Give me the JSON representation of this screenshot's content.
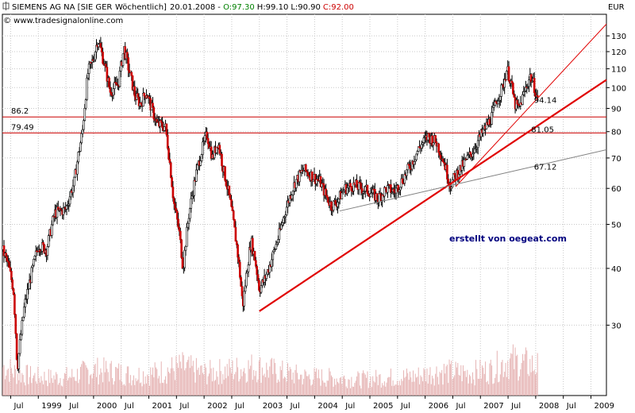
{
  "header": {
    "name": "SIEMENS AG NA [SIE GER",
    "interval": "Wöchentlich]",
    "date": "20.01.2008",
    "o_label": "O:97.30",
    "h_label": "H:99.10",
    "l_label": "L:90.90",
    "c_label": "C:92.00",
    "source": "© www.tradesignalonline.com",
    "currency": "EUR"
  },
  "colors": {
    "up": "#008000",
    "close": "#cc0000",
    "hline": "#cc0000",
    "trend_red": "#e00000",
    "trend_gray": "#808080",
    "watermark": "#00007f"
  },
  "watermark": "erstellt von oegeat.com",
  "chart_data": {
    "type": "candlestick",
    "title": "SIEMENS AG NA [SIE GER Wöchentlich]",
    "ylabel": "EUR",
    "y_scale": "log",
    "ylim": [
      21,
      145
    ],
    "y_ticks": [
      30,
      40,
      50,
      60,
      70,
      80,
      90,
      100,
      110,
      120,
      130
    ],
    "x_range": [
      1998.35,
      2009.28
    ],
    "x_ticks": [
      {
        "label": "Jul",
        "x": 1998.5
      },
      {
        "label": "1999",
        "x": 1999.0
      },
      {
        "label": "Jul",
        "x": 1999.5
      },
      {
        "label": "2000",
        "x": 2000.0
      },
      {
        "label": "Jul",
        "x": 2000.5
      },
      {
        "label": "2001",
        "x": 2001.0
      },
      {
        "label": "Jul",
        "x": 2001.5
      },
      {
        "label": "2002",
        "x": 2002.0
      },
      {
        "label": "Jul",
        "x": 2002.5
      },
      {
        "label": "2003",
        "x": 2003.0
      },
      {
        "label": "Jul",
        "x": 2003.5
      },
      {
        "label": "2004",
        "x": 2004.0
      },
      {
        "label": "Jul",
        "x": 2004.5
      },
      {
        "label": "2005",
        "x": 2005.0
      },
      {
        "label": "Jul",
        "x": 2005.5
      },
      {
        "label": "2006",
        "x": 2006.0
      },
      {
        "label": "Jul",
        "x": 2006.5
      },
      {
        "label": "2007",
        "x": 2007.0
      },
      {
        "label": "Jul",
        "x": 2007.5
      },
      {
        "label": "2008",
        "x": 2008.0
      },
      {
        "label": "Jul",
        "x": 2008.5
      },
      {
        "label": "2009",
        "x": 2009.0
      }
    ],
    "price_path": [
      [
        1998.35,
        44
      ],
      [
        1998.45,
        41
      ],
      [
        1998.55,
        36
      ],
      [
        1998.62,
        24
      ],
      [
        1998.75,
        33
      ],
      [
        1998.9,
        40
      ],
      [
        1999.0,
        45
      ],
      [
        1999.15,
        44
      ],
      [
        1999.3,
        53
      ],
      [
        1999.5,
        54
      ],
      [
        1999.65,
        62
      ],
      [
        1999.8,
        80
      ],
      [
        1999.9,
        108
      ],
      [
        2000.0,
        116
      ],
      [
        2000.08,
        128
      ],
      [
        2000.2,
        112
      ],
      [
        2000.3,
        98
      ],
      [
        2000.45,
        102
      ],
      [
        2000.55,
        122
      ],
      [
        2000.65,
        108
      ],
      [
        2000.75,
        96
      ],
      [
        2000.85,
        92
      ],
      [
        2000.95,
        98
      ],
      [
        2001.05,
        90
      ],
      [
        2001.15,
        83
      ],
      [
        2001.3,
        82
      ],
      [
        2001.45,
        56
      ],
      [
        2001.55,
        48
      ],
      [
        2001.62,
        40
      ],
      [
        2001.72,
        52
      ],
      [
        2001.85,
        64
      ],
      [
        2001.95,
        72
      ],
      [
        2002.05,
        79
      ],
      [
        2002.15,
        70
      ],
      [
        2002.25,
        76
      ],
      [
        2002.35,
        66
      ],
      [
        2002.45,
        58
      ],
      [
        2002.6,
        44
      ],
      [
        2002.7,
        33
      ],
      [
        2002.78,
        40
      ],
      [
        2002.85,
        46
      ],
      [
        2002.92,
        42
      ],
      [
        2003.0,
        36
      ],
      [
        2003.1,
        38
      ],
      [
        2003.2,
        41
      ],
      [
        2003.35,
        47
      ],
      [
        2003.5,
        55
      ],
      [
        2003.65,
        62
      ],
      [
        2003.8,
        66
      ],
      [
        2003.95,
        64
      ],
      [
        2004.1,
        62
      ],
      [
        2004.2,
        58
      ],
      [
        2004.3,
        55
      ],
      [
        2004.4,
        56
      ],
      [
        2004.55,
        60
      ],
      [
        2004.7,
        61
      ],
      [
        2004.85,
        60
      ],
      [
        2005.0,
        59
      ],
      [
        2005.15,
        57
      ],
      [
        2005.3,
        60
      ],
      [
        2005.45,
        59
      ],
      [
        2005.6,
        63
      ],
      [
        2005.75,
        68
      ],
      [
        2005.9,
        74
      ],
      [
        2006.05,
        78
      ],
      [
        2006.2,
        76
      ],
      [
        2006.35,
        68
      ],
      [
        2006.45,
        61
      ],
      [
        2006.55,
        64
      ],
      [
        2006.7,
        68
      ],
      [
        2006.85,
        72
      ],
      [
        2007.0,
        78
      ],
      [
        2007.1,
        82
      ],
      [
        2007.2,
        86
      ],
      [
        2007.3,
        94
      ],
      [
        2007.4,
        100
      ],
      [
        2007.48,
        110
      ],
      [
        2007.55,
        103
      ],
      [
        2007.62,
        92
      ],
      [
        2007.7,
        90
      ],
      [
        2007.8,
        98
      ],
      [
        2007.9,
        106
      ],
      [
        2007.97,
        101
      ],
      [
        2008.05,
        92
      ]
    ],
    "volume": [
      [
        1998.4,
        0.45
      ],
      [
        1998.6,
        0.35
      ],
      [
        1998.9,
        0.3
      ],
      [
        1999.2,
        0.28
      ],
      [
        1999.6,
        0.3
      ],
      [
        1999.95,
        0.4
      ],
      [
        2000.3,
        0.38
      ],
      [
        2000.7,
        0.32
      ],
      [
        2001.1,
        0.35
      ],
      [
        2001.6,
        0.45
      ],
      [
        2002.0,
        0.35
      ],
      [
        2002.5,
        0.4
      ],
      [
        2002.9,
        0.45
      ],
      [
        2003.3,
        0.38
      ],
      [
        2003.8,
        0.3
      ],
      [
        2004.3,
        0.28
      ],
      [
        2004.8,
        0.25
      ],
      [
        2005.3,
        0.28
      ],
      [
        2005.8,
        0.3
      ],
      [
        2006.3,
        0.38
      ],
      [
        2006.8,
        0.35
      ],
      [
        2007.2,
        0.4
      ],
      [
        2007.5,
        0.55
      ],
      [
        2007.8,
        0.5
      ],
      [
        2008.05,
        0.45
      ]
    ],
    "hlines": [
      {
        "label": "86.2",
        "y": 86.2
      },
      {
        "label": "79.49",
        "y": 79.49
      }
    ],
    "trendlines": [
      {
        "name": "thin-red-trendline",
        "from": [
          2006.55,
          60.5
        ],
        "to": [
          2009.28,
          138
        ],
        "width": 1
      },
      {
        "name": "thick-red-trendline",
        "from": [
          2003.0,
          32.2
        ],
        "to": [
          2009.28,
          104
        ],
        "width": 2.2
      },
      {
        "name": "gray-trendline",
        "from": [
          2004.45,
          53.5
        ],
        "to": [
          2009.28,
          73
        ],
        "width": 1
      }
    ],
    "annotations": [
      {
        "label": "94.14",
        "x": 2007.97,
        "y": 94.14,
        "color": "red"
      },
      {
        "label": "81.05",
        "x": 2007.92,
        "y": 81.05,
        "color": "red"
      },
      {
        "label": "67.12",
        "x": 2007.97,
        "y": 67.12,
        "color": "gray"
      }
    ]
  }
}
